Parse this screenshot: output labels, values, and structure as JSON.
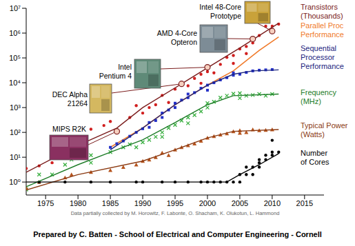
{
  "chart_data": {
    "type": "scatter",
    "log": "y",
    "grid": false,
    "xlim": [
      1972,
      2018
    ],
    "xticks": [
      1975,
      1980,
      1985,
      1990,
      1995,
      2000,
      2005,
      2010,
      2015
    ],
    "ylim": [
      0.3,
      10000000
    ],
    "yticks": [
      {
        "value": 1,
        "label": "10⁰"
      },
      {
        "value": 10,
        "label": "10¹"
      },
      {
        "value": 100,
        "label": "10²"
      },
      {
        "value": 1000,
        "label": "10³"
      },
      {
        "value": 10000,
        "label": "10⁴"
      },
      {
        "value": 100000,
        "label": "10⁵"
      },
      {
        "value": 1000000,
        "label": "10⁶"
      },
      {
        "value": 10000000,
        "label": "10⁷"
      }
    ],
    "series": [
      {
        "name": "Transistors (Thousands)",
        "type": "scatter",
        "marker": "circle",
        "color": "#d11f1f",
        "x": [
          1971,
          1972,
          1974,
          1976,
          1978,
          1979,
          1982,
          1984,
          1985,
          1986,
          1988,
          1989,
          1990,
          1991,
          1992,
          1993,
          1994,
          1995,
          1996,
          1997,
          1998,
          1999,
          1999,
          2000,
          2000,
          2001,
          2002,
          2003,
          2004,
          2004,
          2005,
          2006,
          2006,
          2007,
          2007,
          2008,
          2009,
          2010,
          2010,
          2011
        ],
        "values": [
          2.3,
          3.5,
          4.5,
          6,
          29,
          68,
          134,
          190,
          275,
          110,
          400,
          1200,
          600,
          1000,
          1300,
          3100,
          1600,
          5500,
          9000,
          7500,
          15000,
          9500,
          22000,
          28000,
          42000,
          25000,
          55000,
          105000,
          125000,
          60000,
          230000,
          290000,
          150000,
          580000,
          400000,
          800000,
          1900000,
          1200000,
          1900000,
          2300000
        ],
        "trend": {
          "color": "#7a1c1c",
          "x": [
            1971,
            1980,
            1986,
            1990,
            1996,
            2000,
            2005,
            2011
          ],
          "values": [
            1.8,
            30,
            150,
            1000,
            9000,
            40000,
            250000,
            2500000
          ]
        }
      },
      {
        "name": "Parallel Proc Performance",
        "type": "line",
        "color": "#f07a2a",
        "x": [
          1985,
          1990,
          1995,
          2000,
          2004,
          2008,
          2011
        ],
        "values": [
          25,
          150,
          1300,
          8000,
          30000,
          200000,
          700000
        ]
      },
      {
        "name": "Sequential Processor Performance",
        "type": "scatter",
        "marker": "square",
        "color": "#2430c8",
        "x": [
          1985,
          1986,
          1987,
          1988,
          1989,
          1990,
          1991,
          1991,
          1992,
          1993,
          1993,
          1994,
          1995,
          1995,
          1996,
          1997,
          1997,
          1998,
          1999,
          2000,
          2000,
          2001,
          2002,
          2003,
          2004,
          2004,
          2005,
          2006,
          2007,
          2008,
          2009,
          2010
        ],
        "values": [
          25,
          35,
          45,
          70,
          100,
          140,
          160,
          250,
          300,
          400,
          600,
          800,
          1000,
          1500,
          2000,
          2500,
          3500,
          4000,
          6000,
          8000,
          5000,
          10000,
          13000,
          16000,
          20000,
          25000,
          22000,
          26000,
          30000,
          32000,
          33000,
          34000
        ],
        "trend": {
          "color": "#1a237e",
          "x": [
            1985,
            1990,
            1995,
            2000,
            2004,
            2007,
            2011
          ],
          "values": [
            20,
            150,
            1300,
            8000,
            22000,
            30000,
            33000
          ]
        }
      },
      {
        "name": "Frequency (MHz)",
        "type": "scatter",
        "marker": "x",
        "color": "#3cb043",
        "x": [
          1971,
          1972,
          1974,
          1976,
          1978,
          1979,
          1982,
          1982,
          1985,
          1987,
          1988,
          1989,
          1990,
          1991,
          1992,
          1993,
          1993,
          1994,
          1995,
          1996,
          1997,
          1997,
          1998,
          1999,
          2000,
          2000,
          2001,
          2002,
          2003,
          2004,
          2005,
          2005,
          2006,
          2007,
          2008,
          2009,
          2010
        ],
        "values": [
          0.75,
          0.5,
          2,
          2,
          5,
          8,
          6,
          12,
          16,
          25,
          33,
          25,
          40,
          50,
          66,
          100,
          66,
          150,
          200,
          300,
          400,
          233,
          500,
          700,
          1000,
          1500,
          1700,
          2500,
          3000,
          3600,
          3800,
          2400,
          3000,
          3200,
          3500,
          3000,
          3500
        ],
        "trend": {
          "color": "#1e7d28",
          "x": [
            1971,
            1980,
            1985,
            1990,
            1995,
            2000,
            2004,
            2011
          ],
          "values": [
            0.5,
            5,
            16,
            50,
            250,
            1300,
            3000,
            3500
          ]
        }
      },
      {
        "name": "Typical Power (Watts)",
        "type": "scatter",
        "marker": "triangle",
        "color": "#b5531c",
        "x": [
          1971,
          1972,
          1974,
          1978,
          1979,
          1982,
          1985,
          1987,
          1989,
          1990,
          1991,
          1992,
          1993,
          1994,
          1995,
          1996,
          1997,
          1998,
          1999,
          2000,
          2001,
          2002,
          2003,
          2004,
          2005,
          2005,
          2006,
          2007,
          2008,
          2009,
          2010
        ],
        "values": [
          0.5,
          0.6,
          1,
          1.5,
          2,
          2.5,
          3,
          4,
          5,
          7,
          8,
          10,
          15,
          12,
          20,
          25,
          30,
          35,
          45,
          60,
          70,
          80,
          90,
          110,
          120,
          95,
          100,
          130,
          120,
          125,
          130
        ],
        "trend": {
          "color": "#8b3a12",
          "x": [
            1971,
            1980,
            1990,
            1995,
            2000,
            2004,
            2011
          ],
          "values": [
            0.4,
            2,
            7,
            20,
            60,
            110,
            130
          ]
        }
      },
      {
        "name": "Number of Cores",
        "type": "scatter",
        "marker": "circle",
        "color": "#000000",
        "x": [
          1971,
          1974,
          1978,
          1982,
          1985,
          1989,
          1990,
          1993,
          1995,
          1997,
          1999,
          2000,
          2001,
          2002,
          2003,
          2004,
          2005,
          2005,
          2006,
          2006,
          2007,
          2007,
          2008,
          2008,
          2008,
          2009,
          2009,
          2010,
          2010,
          2010,
          2011
        ],
        "values": [
          1,
          1,
          1,
          1,
          1,
          1,
          1,
          1,
          1,
          1,
          1,
          1,
          1,
          1,
          1,
          1,
          2,
          1,
          2,
          4,
          4,
          2,
          4,
          6,
          8,
          8,
          12,
          12,
          16,
          48,
          16
        ],
        "trend": {
          "color": "#000000",
          "x": [
            1971,
            2003,
            2005,
            2008,
            2011
          ],
          "values": [
            1,
            1,
            2,
            5,
            14
          ]
        }
      }
    ],
    "annotations": [
      {
        "text": "MIPS R2K",
        "x": 1986,
        "y": 110
      },
      {
        "text": "DEC Alpha 21264",
        "x": 1996,
        "y": 9000
      },
      {
        "text": "Intel Pentium 4",
        "x": 2000,
        "y": 42000
      },
      {
        "text": "AMD 4-Core Opteron",
        "x": 2007,
        "y": 580000
      },
      {
        "text": "Intel 48-Core Prototype",
        "x": 2010,
        "y": 1200000
      }
    ],
    "note": "Data partially collected by M. Horowitz, F. Labonte, O. Shacham, K. Olukotun, L. Hammond",
    "credit": "Prepared by C. Batten - School of Electrical and Computer Engineering - Cornell"
  }
}
